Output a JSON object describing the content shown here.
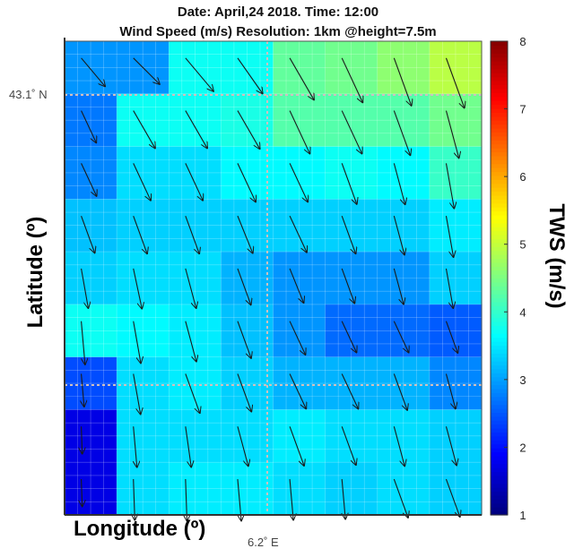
{
  "header": {
    "line1": "Date: April,24 2018.      Time: 12:00",
    "line2": "Wind Speed (m/s)   Resolution: 1km @height=7.5m"
  },
  "axes": {
    "xlabel": "Longitude (º)",
    "ylabel": "Latitude (º)",
    "xtick": "6.2˚ E",
    "ytick": "43.1˚ N"
  },
  "colorbar": {
    "label": "TWS (m/s)",
    "ticks": [
      "1",
      "2",
      "3",
      "4",
      "5",
      "6",
      "7",
      "8"
    ],
    "min": 1,
    "max": 8
  },
  "chart_data": {
    "type": "heatmap",
    "title": "Date: April,24 2018. Time: 12:00 / Wind Speed (m/s) Resolution: 1km @height=7.5m",
    "xlabel": "Longitude (º)",
    "ylabel": "Latitude (º)",
    "colorbar_label": "TWS (m/s)",
    "value_range": [
      1,
      8
    ],
    "rows": 9,
    "cols": 8,
    "values": [
      [
        2.9,
        2.9,
        3.7,
        3.7,
        4.3,
        4.4,
        4.6,
        4.9
      ],
      [
        2.7,
        3.7,
        3.7,
        3.8,
        4.2,
        4.2,
        4.2,
        4.4
      ],
      [
        2.8,
        3.4,
        3.4,
        3.6,
        3.6,
        3.7,
        3.6,
        4.0
      ],
      [
        3.2,
        3.3,
        3.3,
        3.3,
        3.3,
        3.3,
        3.3,
        3.5
      ],
      [
        3.3,
        3.4,
        3.4,
        3.1,
        2.9,
        2.9,
        2.9,
        3.3
      ],
      [
        3.7,
        3.6,
        3.5,
        3.2,
        2.9,
        2.6,
        2.6,
        2.5
      ],
      [
        2.4,
        3.4,
        3.5,
        3.3,
        3.1,
        3.1,
        3.1,
        2.8
      ],
      [
        1.7,
        3.4,
        3.4,
        3.4,
        3.5,
        3.4,
        3.4,
        3.3
      ],
      [
        1.7,
        3.4,
        3.5,
        3.5,
        3.4,
        3.3,
        3.4,
        3.3
      ]
    ],
    "vectors_dir_deg": [
      [
        140,
        135,
        140,
        145,
        150,
        155,
        160,
        160
      ],
      [
        155,
        150,
        150,
        150,
        155,
        155,
        160,
        165
      ],
      [
        155,
        155,
        155,
        155,
        155,
        160,
        165,
        170
      ],
      [
        160,
        160,
        160,
        158,
        155,
        160,
        165,
        170
      ],
      [
        170,
        168,
        165,
        160,
        158,
        160,
        165,
        170
      ],
      [
        175,
        170,
        165,
        160,
        155,
        155,
        155,
        160
      ],
      [
        175,
        170,
        160,
        160,
        155,
        155,
        160,
        165
      ],
      [
        178,
        175,
        172,
        165,
        160,
        160,
        165,
        165
      ],
      [
        178,
        178,
        178,
        175,
        175,
        175,
        160,
        160
      ]
    ],
    "vectors_speed": [
      [
        2.9,
        2.9,
        3.7,
        3.7,
        4.3,
        4.4,
        4.6,
        4.9
      ],
      [
        2.7,
        3.7,
        3.7,
        3.8,
        4.2,
        4.2,
        4.2,
        4.4
      ],
      [
        2.8,
        3.4,
        3.4,
        3.6,
        3.6,
        3.7,
        3.6,
        4.0
      ],
      [
        3.2,
        3.3,
        3.3,
        3.3,
        3.3,
        3.3,
        3.3,
        3.5
      ],
      [
        3.3,
        3.4,
        3.4,
        3.1,
        2.9,
        2.9,
        2.9,
        3.3
      ],
      [
        3.7,
        3.6,
        3.5,
        3.2,
        2.9,
        2.6,
        2.6,
        2.5
      ],
      [
        2.4,
        3.4,
        3.5,
        3.3,
        3.1,
        3.1,
        3.1,
        2.8
      ],
      [
        1.7,
        3.4,
        3.4,
        3.4,
        3.5,
        3.4,
        3.4,
        3.3
      ],
      [
        1.7,
        3.4,
        3.5,
        3.5,
        3.4,
        3.3,
        3.4,
        3.3
      ]
    ],
    "reference_lines": {
      "longitude": "6.2˚ E",
      "latitude": "43.1˚ N"
    },
    "grid": true,
    "colormap": "jet"
  }
}
